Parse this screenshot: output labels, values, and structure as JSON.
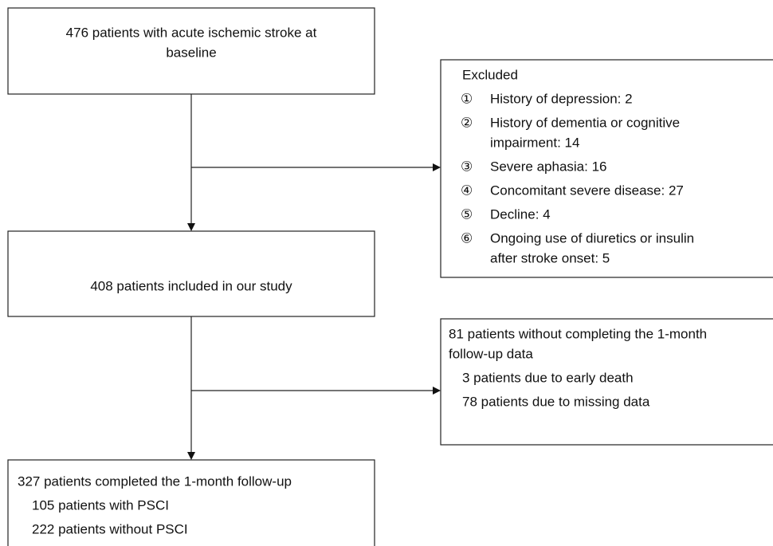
{
  "nodes": [
    {
      "lines": [
        "476 patients with acute ischemic stroke at",
        "baseline"
      ]
    },
    {
      "lines": [
        "408 patients included in our study"
      ]
    },
    {
      "lines": [
        "Excluded"
      ],
      "items": [
        {
          "marker": "①",
          "lines": [
            "History of depression: 2"
          ]
        },
        {
          "marker": "②",
          "lines": [
            "History of dementia or cognitive",
            "impairment: 14"
          ]
        },
        {
          "marker": "③",
          "lines": [
            "Severe aphasia: 16"
          ]
        },
        {
          "marker": "④",
          "lines": [
            "Concomitant severe disease: 27"
          ]
        },
        {
          "marker": "⑤",
          "lines": [
            "Decline: 4"
          ]
        },
        {
          "marker": "⑥",
          "lines": [
            "Ongoing use of diuretics or insulin",
            "after stroke onset: 5"
          ]
        }
      ]
    },
    {
      "lines": [
        "81 patients without completing the 1-month",
        "follow-up data"
      ],
      "sub": [
        "3 patients due to early death",
        "78 patients due to missing data"
      ]
    },
    {
      "lines": [
        "327 patients completed the 1-month follow-up"
      ],
      "sub": [
        "105 patients with PSCI",
        "222 patients without PSCI"
      ]
    }
  ]
}
